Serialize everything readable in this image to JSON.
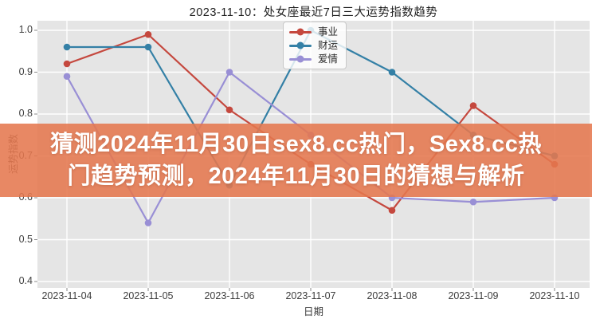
{
  "overlay": {
    "line1": "猜测2024年11月30日sex8.cc热门，Sex8.cc热",
    "line2": "门趋势预测，2024年11月30日的猜想与解析",
    "background_rgba": "rgba(229,119,79,0.88)",
    "text_color": "#ffffff"
  },
  "chart_data": {
    "type": "line",
    "title": "2023-11-10：处女座最近7日三大运势指数趋势",
    "xlabel": "日期",
    "ylabel": "运势指数",
    "x": [
      "2023-11-04",
      "2023-11-05",
      "2023-11-06",
      "2023-11-07",
      "2023-11-08",
      "2023-11-09",
      "2023-11-10"
    ],
    "series": [
      {
        "name": "事业",
        "slug": "career",
        "color": "#c5483e",
        "values": [
          0.92,
          0.99,
          0.81,
          0.68,
          0.57,
          0.82,
          0.68
        ]
      },
      {
        "name": "财运",
        "slug": "wealth",
        "color": "#3480a6",
        "values": [
          0.96,
          0.96,
          0.63,
          1.0,
          0.9,
          0.75,
          0.7
        ]
      },
      {
        "name": "爱情",
        "slug": "love",
        "color": "#998fd5",
        "values": [
          0.89,
          0.54,
          0.9,
          0.75,
          0.6,
          0.59,
          0.6
        ]
      }
    ],
    "ylim": [
      0.4,
      1.0
    ],
    "yticks": [
      0.4,
      0.5,
      0.6,
      0.7,
      0.8,
      0.9,
      1.0
    ],
    "grid": true,
    "legend_position": "upper center",
    "plot_background": "#e5e5e5",
    "grid_color": "#ffffff",
    "tick_color": "#8a8a8a"
  }
}
